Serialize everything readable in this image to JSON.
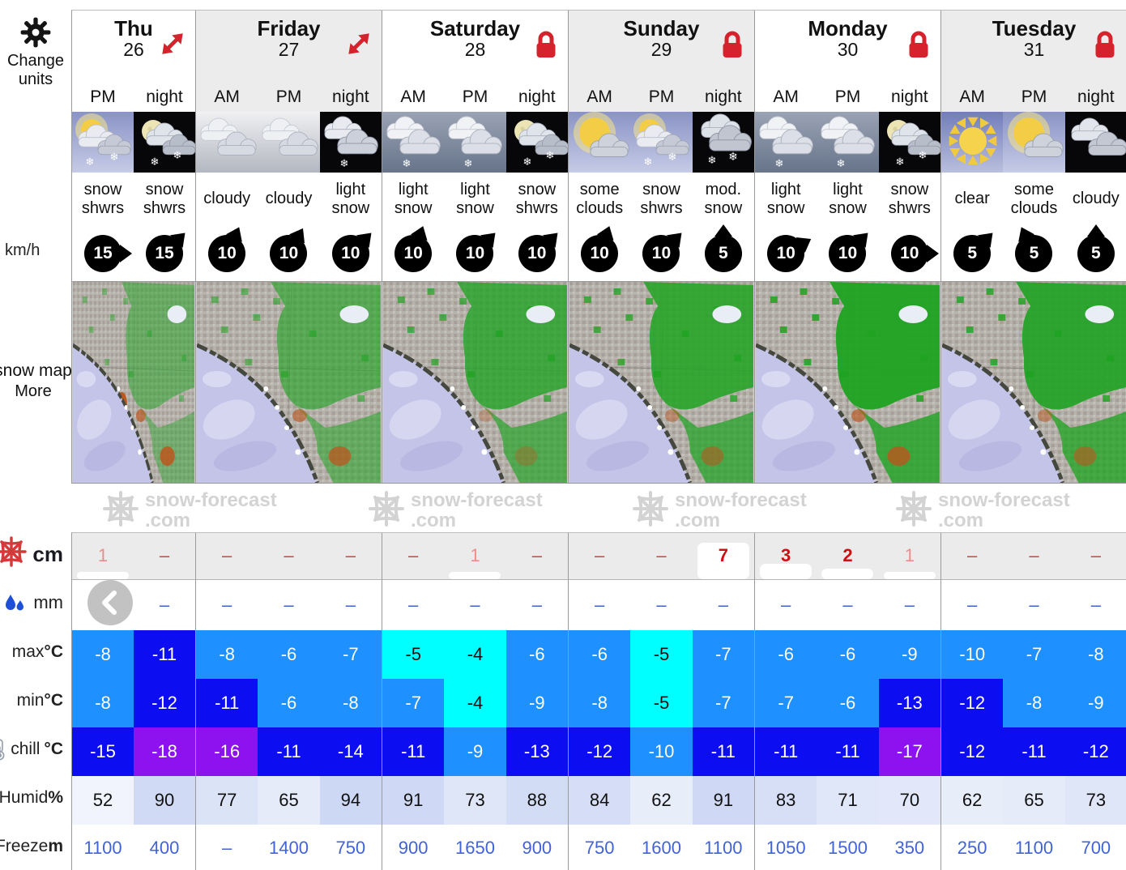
{
  "sidebar": {
    "change_units": "Change units",
    "wind_unit": "km/h",
    "map_label": "snow map",
    "map_more": "More",
    "row_labels": {
      "snow": "cm",
      "rain": "mm",
      "max": "max ",
      "min": "min ",
      "chill": "chill ",
      "deg": "°C",
      "humid": "Humid ",
      "humid_unit": "%",
      "freeze": "Freeze ",
      "freeze_unit": "m"
    },
    "icons": [
      "gear-icon",
      "snowflake-icon",
      "raindrops-icon",
      "thermometer-icon"
    ]
  },
  "watermark": {
    "name": "snow-forecast",
    "tld": ".com",
    "icon": "snowflake-logo"
  },
  "colors": {
    "accent_red": "#d5222c",
    "temp_blue": "#1e90ff",
    "temp_dark_blue": "#0d0df2",
    "temp_cyan": "#00ffff",
    "temp_purple": "#8e12ef",
    "freeze_text": "#4263d6",
    "rain_dash": "#3a66cc",
    "snow_bold": "#cc1111",
    "snow_light": "#ee8b8b",
    "header_shade": "#ececec",
    "snow_row_bg": "#ebebeb"
  },
  "days": [
    {
      "name": "Thu",
      "date": "26",
      "badge": "expand",
      "shade": false,
      "cols": [
        {
          "time": "PM",
          "icon": "snow-shwrs-day",
          "desc": "snow shwrs",
          "wind": 15,
          "dir": 90,
          "snow": "1",
          "snow_em": false,
          "rain": "–",
          "max": -8,
          "maxc": "b",
          "min": -8,
          "minc": "b",
          "chill": -15,
          "chillc": "db",
          "humid": 52,
          "freeze": "1100"
        },
        {
          "time": "night",
          "icon": "snow-shwrs-night",
          "desc": "snow shwrs",
          "wind": 15,
          "dir": 45,
          "snow": "–",
          "rain": "–",
          "max": -11,
          "maxc": "db",
          "min": -12,
          "minc": "db",
          "chill": -18,
          "chillc": "pu",
          "humid": 90,
          "freeze": "400"
        }
      ]
    },
    {
      "name": "Friday",
      "date": "27",
      "badge": "expand",
      "shade": true,
      "cols": [
        {
          "time": "AM",
          "icon": "cloudy-day",
          "desc": "cloudy",
          "wind": 10,
          "dir": 25,
          "snow": "–",
          "rain": "–",
          "max": -8,
          "maxc": "b",
          "min": -11,
          "minc": "db",
          "chill": -16,
          "chillc": "pu",
          "humid": 77,
          "freeze": "–"
        },
        {
          "time": "PM",
          "icon": "cloudy-day",
          "desc": "cloudy",
          "wind": 10,
          "dir": 30,
          "snow": "–",
          "rain": "–",
          "max": -6,
          "maxc": "b",
          "min": -6,
          "minc": "b",
          "chill": -11,
          "chillc": "db",
          "humid": 65,
          "freeze": "1400"
        },
        {
          "time": "night",
          "icon": "light-snow-night",
          "desc": "light snow",
          "wind": 10,
          "dir": 45,
          "snow": "–",
          "rain": "–",
          "max": -7,
          "maxc": "b",
          "min": -8,
          "minc": "b",
          "chill": -14,
          "chillc": "db",
          "humid": 94,
          "freeze": "750"
        }
      ]
    },
    {
      "name": "Saturday",
      "date": "28",
      "badge": "lock",
      "shade": false,
      "cols": [
        {
          "time": "AM",
          "icon": "light-snow-day",
          "desc": "light snow",
          "wind": 10,
          "dir": 20,
          "snow": "–",
          "rain": "–",
          "max": -5,
          "maxc": "cy",
          "min": -7,
          "minc": "b",
          "chill": -11,
          "chillc": "db",
          "humid": 91,
          "freeze": "900"
        },
        {
          "time": "PM",
          "icon": "light-snow-day",
          "desc": "light snow",
          "wind": 10,
          "dir": 45,
          "snow": "1",
          "snow_em": false,
          "rain": "–",
          "max": -4,
          "maxc": "cy",
          "min": -4,
          "minc": "cy",
          "chill": -9,
          "chillc": "b",
          "humid": 73,
          "freeze": "1650"
        },
        {
          "time": "night",
          "icon": "snow-shwrs-night",
          "desc": "snow shwrs",
          "wind": 10,
          "dir": 45,
          "snow": "–",
          "rain": "–",
          "max": -6,
          "maxc": "b",
          "min": -9,
          "minc": "b",
          "chill": -13,
          "chillc": "db",
          "humid": 88,
          "freeze": "900"
        }
      ]
    },
    {
      "name": "Sunday",
      "date": "29",
      "badge": "lock",
      "shade": true,
      "cols": [
        {
          "time": "AM",
          "icon": "some-clouds-day",
          "desc": "some clouds",
          "wind": 10,
          "dir": 20,
          "snow": "–",
          "rain": "–",
          "max": -6,
          "maxc": "b",
          "min": -8,
          "minc": "b",
          "chill": -12,
          "chillc": "db",
          "humid": 84,
          "freeze": "750"
        },
        {
          "time": "PM",
          "icon": "snow-shwrs-day",
          "desc": "snow shwrs",
          "wind": 10,
          "dir": 45,
          "snow": "–",
          "rain": "–",
          "max": -5,
          "maxc": "cy",
          "min": -5,
          "minc": "cy",
          "chill": -10,
          "chillc": "b",
          "humid": 62,
          "freeze": "1600"
        },
        {
          "time": "night",
          "icon": "mod-snow-night",
          "desc": "mod. snow",
          "wind": 5,
          "dir": 0,
          "snow": "7",
          "snow_em": true,
          "rain": "–",
          "max": -7,
          "maxc": "b",
          "min": -7,
          "minc": "b",
          "chill": -11,
          "chillc": "db",
          "humid": 91,
          "freeze": "1100"
        }
      ]
    },
    {
      "name": "Monday",
      "date": "30",
      "badge": "lock",
      "shade": false,
      "cols": [
        {
          "time": "AM",
          "icon": "light-snow-day",
          "desc": "light snow",
          "wind": 10,
          "dir": 60,
          "snow": "3",
          "snow_em": true,
          "rain": "–",
          "max": -6,
          "maxc": "b",
          "min": -7,
          "minc": "b",
          "chill": -11,
          "chillc": "db",
          "humid": 83,
          "freeze": "1050"
        },
        {
          "time": "PM",
          "icon": "light-snow-day",
          "desc": "light snow",
          "wind": 10,
          "dir": 45,
          "snow": "2",
          "snow_em": true,
          "rain": "–",
          "max": -6,
          "maxc": "b",
          "min": -6,
          "minc": "b",
          "chill": -11,
          "chillc": "db",
          "humid": 71,
          "freeze": "1500"
        },
        {
          "time": "night",
          "icon": "snow-shwrs-night",
          "desc": "snow shwrs",
          "wind": 10,
          "dir": 90,
          "snow": "1",
          "snow_em": false,
          "rain": "–",
          "max": -9,
          "maxc": "b",
          "min": -13,
          "minc": "db",
          "chill": -17,
          "chillc": "pu",
          "humid": 70,
          "freeze": "350"
        }
      ]
    },
    {
      "name": "Tuesday",
      "date": "31",
      "badge": "lock",
      "shade": true,
      "cols": [
        {
          "time": "AM",
          "icon": "clear-day",
          "desc": "clear",
          "wind": 5,
          "dir": 45,
          "snow": "–",
          "rain": "–",
          "max": -10,
          "maxc": "b",
          "min": -12,
          "minc": "db",
          "chill": -12,
          "chillc": "db",
          "humid": 62,
          "freeze": "250"
        },
        {
          "time": "PM",
          "icon": "some-clouds-day",
          "desc": "some clouds",
          "wind": 5,
          "dir": -25,
          "snow": "–",
          "rain": "–",
          "max": -7,
          "maxc": "b",
          "min": -8,
          "minc": "b",
          "chill": -11,
          "chillc": "db",
          "humid": 65,
          "freeze": "1100"
        },
        {
          "time": "night",
          "icon": "cloudy-night",
          "desc": "cloudy",
          "wind": 5,
          "dir": 0,
          "snow": "–",
          "rain": "–",
          "max": -8,
          "maxc": "b",
          "min": -9,
          "minc": "b",
          "chill": -12,
          "chillc": "db",
          "humid": 73,
          "freeze": "700"
        }
      ]
    }
  ]
}
